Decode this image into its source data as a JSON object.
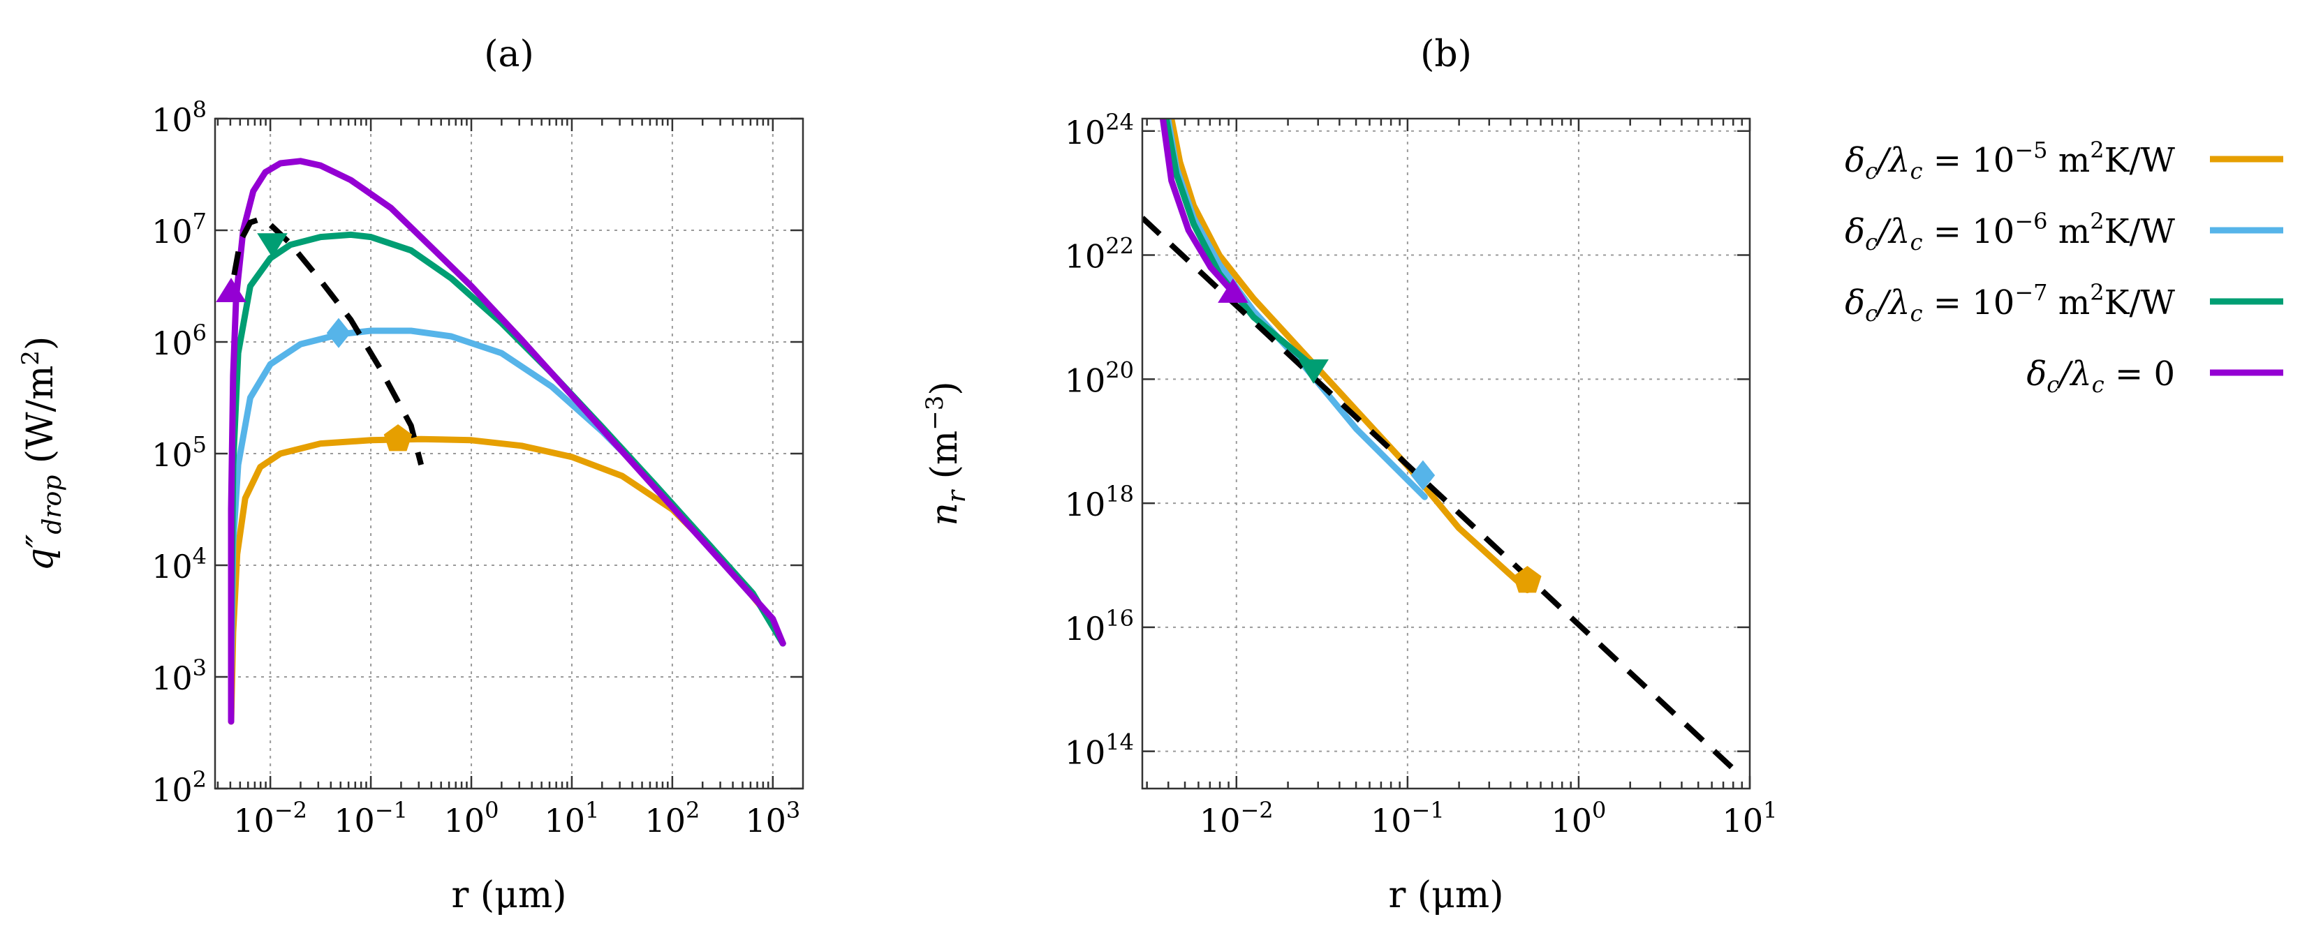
{
  "chart_data": [
    {
      "type": "line",
      "panel_label": "(a)",
      "xlabel": "r (μm)",
      "ylabel": "q″drop (W/m²)",
      "ylabel_main": "q″",
      "ylabel_sub": "drop",
      "ylabel_unit": " (W/m",
      "ylabel_unit_exp": "2",
      "ylabel_unit_close": ")",
      "xscale": "log",
      "yscale": "log",
      "xlim_log10": [
        -2.55,
        3.3
      ],
      "ylim_log10": [
        2,
        8
      ],
      "grid": true,
      "x_ticks": [
        {
          "base": "10",
          "exp": "−2",
          "log10": -2
        },
        {
          "base": "10",
          "exp": "−1",
          "log10": -1
        },
        {
          "base": "10",
          "exp": "0",
          "log10": 0
        },
        {
          "base": "10",
          "exp": "1",
          "log10": 1
        },
        {
          "base": "10",
          "exp": "2",
          "log10": 2
        },
        {
          "base": "10",
          "exp": "3",
          "log10": 3
        }
      ],
      "y_ticks": [
        {
          "base": "10",
          "exp": "2",
          "log10": 2
        },
        {
          "base": "10",
          "exp": "3",
          "log10": 3
        },
        {
          "base": "10",
          "exp": "4",
          "log10": 4
        },
        {
          "base": "10",
          "exp": "5",
          "log10": 5
        },
        {
          "base": "10",
          "exp": "6",
          "log10": 6
        },
        {
          "base": "10",
          "exp": "7",
          "log10": 7
        },
        {
          "base": "10",
          "exp": "8",
          "log10": 8
        }
      ],
      "series": [
        {
          "name": "δc/λc = 10⁻⁵ m²K/W",
          "color": "#E69F00",
          "points_log10": [
            [
              -2.39,
              2.6
            ],
            [
              -2.37,
              3.4
            ],
            [
              -2.33,
              4.1
            ],
            [
              -2.25,
              4.6
            ],
            [
              -2.1,
              4.88
            ],
            [
              -1.9,
              5.0
            ],
            [
              -1.5,
              5.09
            ],
            [
              -1,
              5.12
            ],
            [
              -0.5,
              5.13
            ],
            [
              0,
              5.12
            ],
            [
              0.5,
              5.07
            ],
            [
              1,
              4.97
            ],
            [
              1.5,
              4.8
            ],
            [
              2,
              4.5
            ],
            [
              2.5,
              4.05
            ],
            [
              3,
              3.5
            ],
            [
              3.1,
              3.3
            ]
          ],
          "marker": {
            "shape": "pentagon",
            "x_log10": -0.73,
            "y_log10": 5.13
          }
        },
        {
          "name": "δc/λc = 10⁻⁶ m²K/W",
          "color": "#56B4E9",
          "points_log10": [
            [
              -2.39,
              3.0
            ],
            [
              -2.37,
              4.2
            ],
            [
              -2.32,
              4.9
            ],
            [
              -2.2,
              5.5
            ],
            [
              -2.0,
              5.8
            ],
            [
              -1.7,
              5.98
            ],
            [
              -1.3,
              6.07
            ],
            [
              -1,
              6.1
            ],
            [
              -0.6,
              6.1
            ],
            [
              -0.2,
              6.05
            ],
            [
              0.3,
              5.9
            ],
            [
              0.8,
              5.6
            ],
            [
              1.3,
              5.2
            ],
            [
              1.8,
              4.75
            ],
            [
              2.3,
              4.25
            ],
            [
              2.8,
              3.75
            ],
            [
              3.1,
              3.3
            ]
          ],
          "marker": {
            "shape": "diamond",
            "x_log10": -1.32,
            "y_log10": 6.08
          }
        },
        {
          "name": "δc/λc = 10⁻⁷ m²K/W",
          "color": "#009E73",
          "points_log10": [
            [
              -2.39,
              3.3
            ],
            [
              -2.37,
              4.9
            ],
            [
              -2.32,
              5.9
            ],
            [
              -2.2,
              6.5
            ],
            [
              -2.0,
              6.75
            ],
            [
              -1.8,
              6.87
            ],
            [
              -1.5,
              6.94
            ],
            [
              -1.2,
              6.96
            ],
            [
              -1,
              6.94
            ],
            [
              -0.6,
              6.82
            ],
            [
              -0.2,
              6.57
            ],
            [
              0.3,
              6.17
            ],
            [
              0.8,
              5.72
            ],
            [
              1.3,
              5.24
            ],
            [
              1.8,
              4.75
            ],
            [
              2.3,
              4.25
            ],
            [
              2.8,
              3.75
            ],
            [
              3.1,
              3.3
            ]
          ],
          "marker": {
            "shape": "triangle-down",
            "x_log10": -1.98,
            "y_log10": 6.88
          }
        },
        {
          "name": "δc/λc = 0",
          "color": "#9400D3",
          "points_log10": [
            [
              -2.39,
              2.6
            ],
            [
              -2.39,
              4.5
            ],
            [
              -2.37,
              5.7
            ],
            [
              -2.34,
              6.4
            ],
            [
              -2.27,
              7.0
            ],
            [
              -2.17,
              7.35
            ],
            [
              -2.05,
              7.52
            ],
            [
              -1.9,
              7.6
            ],
            [
              -1.7,
              7.62
            ],
            [
              -1.5,
              7.58
            ],
            [
              -1.2,
              7.45
            ],
            [
              -0.8,
              7.2
            ],
            [
              -0.4,
              6.85
            ],
            [
              0,
              6.5
            ],
            [
              0.5,
              6.02
            ],
            [
              1,
              5.52
            ],
            [
              1.5,
              5.02
            ],
            [
              2,
              4.52
            ],
            [
              2.5,
              4.02
            ],
            [
              3,
              3.52
            ],
            [
              3.1,
              3.3
            ]
          ],
          "marker": {
            "shape": "triangle-up",
            "x_log10": -2.39,
            "y_log10": 6.45
          }
        },
        {
          "name": "dashed reference",
          "color": "#000000",
          "dashed": true,
          "points_log10": [
            [
              -2.36,
              6.6
            ],
            [
              -2.3,
              6.9
            ],
            [
              -2.2,
              7.07
            ],
            [
              -2.1,
              7.1
            ],
            [
              -2.0,
              7.05
            ],
            [
              -1.8,
              6.88
            ],
            [
              -1.5,
              6.55
            ],
            [
              -1.2,
              6.2
            ],
            [
              -0.9,
              5.75
            ],
            [
              -0.6,
              5.25
            ],
            [
              -0.5,
              4.9
            ]
          ]
        }
      ]
    },
    {
      "type": "line",
      "panel_label": "(b)",
      "xlabel": "r (μm)",
      "ylabel": "n_r (m⁻³)",
      "ylabel_main": "n",
      "ylabel_sub": "r",
      "ylabel_unit": " (m",
      "ylabel_unit_exp": "−3",
      "ylabel_unit_close": ")",
      "xscale": "log",
      "yscale": "log",
      "xlim_log10": [
        -2.55,
        1.0
      ],
      "ylim_log10": [
        13.4,
        24.2
      ],
      "grid": true,
      "x_ticks": [
        {
          "base": "10",
          "exp": "−2",
          "log10": -2
        },
        {
          "base": "10",
          "exp": "−1",
          "log10": -1
        },
        {
          "base": "10",
          "exp": "0",
          "log10": 0
        },
        {
          "base": "10",
          "exp": "1",
          "log10": 1
        }
      ],
      "y_ticks": [
        {
          "base": "10",
          "exp": "14",
          "log10": 14
        },
        {
          "base": "10",
          "exp": "16",
          "log10": 16
        },
        {
          "base": "10",
          "exp": "18",
          "log10": 18
        },
        {
          "base": "10",
          "exp": "20",
          "log10": 20
        },
        {
          "base": "10",
          "exp": "22",
          "log10": 22
        },
        {
          "base": "10",
          "exp": "24",
          "log10": 24
        }
      ],
      "series": [
        {
          "name": "δc/λc = 10⁻⁵ m²K/W",
          "color": "#E69F00",
          "points_log10": [
            [
              -2.38,
              24.2
            ],
            [
              -2.33,
              23.5
            ],
            [
              -2.25,
              22.8
            ],
            [
              -2.1,
              22.0
            ],
            [
              -1.9,
              21.3
            ],
            [
              -1.6,
              20.4
            ],
            [
              -1.3,
              19.5
            ],
            [
              -1.0,
              18.6
            ],
            [
              -0.7,
              17.6
            ],
            [
              -0.3,
              16.6
            ]
          ],
          "marker": {
            "shape": "pentagon",
            "x_log10": -0.3,
            "y_log10": 16.75
          }
        },
        {
          "name": "δc/λc = 10⁻⁶ m²K/W",
          "color": "#56B4E9",
          "points_log10": [
            [
              -2.4,
              24.2
            ],
            [
              -2.35,
              23.4
            ],
            [
              -2.25,
              22.6
            ],
            [
              -2.1,
              21.85
            ],
            [
              -1.9,
              21.1
            ],
            [
              -1.6,
              20.2
            ],
            [
              -1.3,
              19.2
            ],
            [
              -0.9,
              18.1
            ]
          ],
          "marker": {
            "shape": "diamond",
            "x_log10": -0.91,
            "y_log10": 18.45
          }
        },
        {
          "name": "δc/λc = 10⁻⁷ m²K/W",
          "color": "#009E73",
          "points_log10": [
            [
              -2.41,
              24.2
            ],
            [
              -2.35,
              23.3
            ],
            [
              -2.25,
              22.5
            ],
            [
              -2.1,
              21.7
            ],
            [
              -1.9,
              21.0
            ],
            [
              -1.55,
              20.2
            ]
          ],
          "marker": {
            "shape": "triangle-down",
            "x_log10": -1.55,
            "y_log10": 20.15
          }
        },
        {
          "name": "δc/λc = 0",
          "color": "#9400D3",
          "points_log10": [
            [
              -2.43,
              24.2
            ],
            [
              -2.38,
              23.2
            ],
            [
              -2.28,
              22.4
            ],
            [
              -2.15,
              21.8
            ],
            [
              -2.02,
              21.4
            ]
          ],
          "marker": {
            "shape": "triangle-up",
            "x_log10": -2.02,
            "y_log10": 21.4
          }
        },
        {
          "name": "dashed reference",
          "color": "#000000",
          "dashed": true,
          "points_log10": [
            [
              -2.55,
              22.6
            ],
            [
              0.95,
              13.6
            ]
          ]
        }
      ]
    }
  ],
  "legend": {
    "position": "right",
    "items": [
      {
        "prefix": "δ",
        "sub1": "c",
        "mid": "/λ",
        "sub2": "c",
        "eq": " = 10",
        "exp": "−5",
        "unit": " m",
        "unit_exp": "2",
        "unit_tail": "K/W",
        "color": "#E69F00"
      },
      {
        "prefix": "δ",
        "sub1": "c",
        "mid": "/λ",
        "sub2": "c",
        "eq": " = 10",
        "exp": "−6",
        "unit": " m",
        "unit_exp": "2",
        "unit_tail": "K/W",
        "color": "#56B4E9"
      },
      {
        "prefix": "δ",
        "sub1": "c",
        "mid": "/λ",
        "sub2": "c",
        "eq": " = 10",
        "exp": "−7",
        "unit": " m",
        "unit_exp": "2",
        "unit_tail": "K/W",
        "color": "#009E73"
      },
      {
        "prefix": "δ",
        "sub1": "c",
        "mid": "/λ",
        "sub2": "c",
        "eq": " = 0",
        "exp": "",
        "unit": "",
        "unit_exp": "",
        "unit_tail": "",
        "color": "#9400D3"
      }
    ]
  }
}
